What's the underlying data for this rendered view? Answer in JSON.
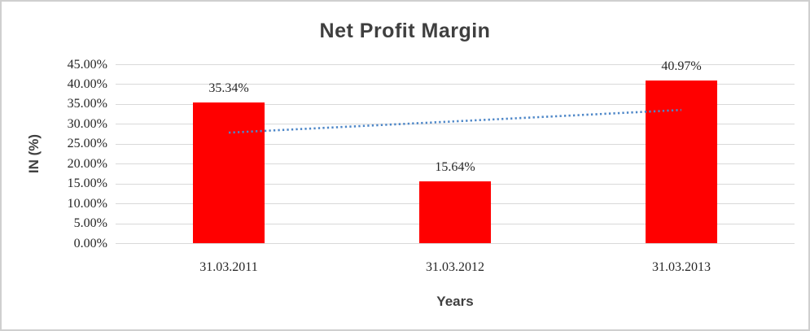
{
  "chart_data": {
    "type": "bar",
    "title": "Net Profit Margin",
    "xlabel": "Years",
    "ylabel": "IN (%)",
    "categories": [
      "31.03.2011",
      "31.03.2012",
      "31.03.2013"
    ],
    "values": [
      35.34,
      15.64,
      40.97
    ],
    "data_labels": [
      "35.34%",
      "15.64%",
      "40.97%"
    ],
    "y_ticks": [
      "0.00%",
      "5.00%",
      "10.00%",
      "15.00%",
      "20.00%",
      "25.00%",
      "30.00%",
      "35.00%",
      "40.00%",
      "45.00%"
    ],
    "y_tick_step": 5,
    "ylim": [
      0,
      45
    ],
    "grid": true,
    "legend": "none",
    "trendline": {
      "type": "linear",
      "style": "dotted",
      "values_pct": [
        27.8,
        30.65,
        33.5
      ]
    },
    "colors": {
      "bar": "#FF0000",
      "trendline": "#4E87C8",
      "gridline": "#D9D9D9",
      "title_text": "#3F3F3F",
      "axis_title_text": "#3F3F3F",
      "tick_text": "#262626",
      "data_label_text": "#262626"
    }
  }
}
